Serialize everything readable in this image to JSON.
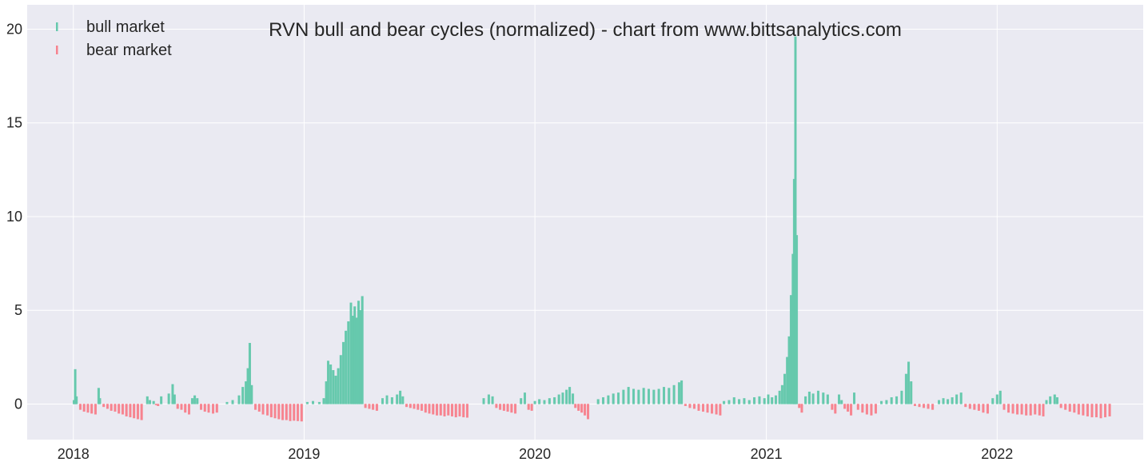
{
  "chart_data": {
    "type": "bar",
    "title": "RVN bull and bear cycles (normalized)  - chart from www.bittsanalytics.com",
    "xlabel": "",
    "ylabel": "",
    "xlim": [
      "2017-10-20",
      "2022-08-20"
    ],
    "ylim": [
      -1.9,
      21.3
    ],
    "x_ticks": [
      "2018",
      "2019",
      "2020",
      "2021",
      "2022"
    ],
    "y_ticks": [
      0,
      5,
      10,
      15,
      20
    ],
    "grid": true,
    "legend": {
      "position": "top-left"
    },
    "colors": {
      "bull market": "#66c9ad",
      "bear market": "#f7838f",
      "background": "#eaeaf2",
      "grid": "#ffffff"
    },
    "series": [
      {
        "name": "bull market",
        "points": [
          [
            "2018-01-02",
            0.2
          ],
          [
            "2018-01-04",
            1.85
          ],
          [
            "2018-01-06",
            0.4
          ],
          [
            "2018-02-10",
            0.85
          ],
          [
            "2018-02-12",
            0.3
          ],
          [
            "2018-04-28",
            0.4
          ],
          [
            "2018-05-02",
            0.2
          ],
          [
            "2018-05-08",
            0.15
          ],
          [
            "2018-05-20",
            0.4
          ],
          [
            "2018-06-01",
            0.55
          ],
          [
            "2018-06-07",
            1.05
          ],
          [
            "2018-06-10",
            0.5
          ],
          [
            "2018-07-08",
            0.3
          ],
          [
            "2018-07-12",
            0.45
          ],
          [
            "2018-07-16",
            0.3
          ],
          [
            "2018-09-01",
            0.1
          ],
          [
            "2018-09-10",
            0.2
          ],
          [
            "2018-09-20",
            0.45
          ],
          [
            "2018-09-26",
            0.9
          ],
          [
            "2018-10-01",
            1.2
          ],
          [
            "2018-10-04",
            1.9
          ],
          [
            "2018-10-07",
            3.25
          ],
          [
            "2018-10-10",
            1.0
          ],
          [
            "2019-01-06",
            0.1
          ],
          [
            "2019-01-15",
            0.15
          ],
          [
            "2019-01-25",
            0.1
          ],
          [
            "2019-02-01",
            0.3
          ],
          [
            "2019-02-05",
            1.2
          ],
          [
            "2019-02-08",
            2.3
          ],
          [
            "2019-02-12",
            2.1
          ],
          [
            "2019-02-16",
            1.8
          ],
          [
            "2019-02-20",
            1.5
          ],
          [
            "2019-02-24",
            1.9
          ],
          [
            "2019-02-28",
            2.6
          ],
          [
            "2019-03-04",
            3.3
          ],
          [
            "2019-03-08",
            3.9
          ],
          [
            "2019-03-12",
            4.4
          ],
          [
            "2019-03-16",
            5.4
          ],
          [
            "2019-03-19",
            4.7
          ],
          [
            "2019-03-22",
            5.2
          ],
          [
            "2019-03-25",
            4.6
          ],
          [
            "2019-03-28",
            5.5
          ],
          [
            "2019-03-31",
            5.0
          ],
          [
            "2019-04-03",
            5.75
          ],
          [
            "2019-05-05",
            0.3
          ],
          [
            "2019-05-12",
            0.45
          ],
          [
            "2019-05-20",
            0.35
          ],
          [
            "2019-05-28",
            0.5
          ],
          [
            "2019-06-02",
            0.7
          ],
          [
            "2019-06-06",
            0.4
          ],
          [
            "2019-10-12",
            0.3
          ],
          [
            "2019-10-20",
            0.5
          ],
          [
            "2019-10-26",
            0.4
          ],
          [
            "2019-12-10",
            0.3
          ],
          [
            "2019-12-16",
            0.6
          ],
          [
            "2020-01-01",
            0.15
          ],
          [
            "2020-01-08",
            0.25
          ],
          [
            "2020-01-16",
            0.2
          ],
          [
            "2020-01-24",
            0.3
          ],
          [
            "2020-02-01",
            0.35
          ],
          [
            "2020-02-08",
            0.5
          ],
          [
            "2020-02-14",
            0.6
          ],
          [
            "2020-02-20",
            0.75
          ],
          [
            "2020-02-25",
            0.9
          ],
          [
            "2020-03-01",
            0.55
          ],
          [
            "2020-04-10",
            0.25
          ],
          [
            "2020-04-18",
            0.35
          ],
          [
            "2020-04-26",
            0.45
          ],
          [
            "2020-05-04",
            0.55
          ],
          [
            "2020-05-12",
            0.6
          ],
          [
            "2020-05-20",
            0.75
          ],
          [
            "2020-05-28",
            0.9
          ],
          [
            "2020-06-05",
            0.8
          ],
          [
            "2020-06-13",
            0.75
          ],
          [
            "2020-06-21",
            0.85
          ],
          [
            "2020-06-29",
            0.8
          ],
          [
            "2020-07-07",
            0.75
          ],
          [
            "2020-07-15",
            0.8
          ],
          [
            "2020-07-23",
            0.9
          ],
          [
            "2020-07-31",
            0.85
          ],
          [
            "2020-08-08",
            1.0
          ],
          [
            "2020-08-16",
            1.15
          ],
          [
            "2020-08-20",
            1.25
          ],
          [
            "2020-10-26",
            0.15
          ],
          [
            "2020-11-03",
            0.2
          ],
          [
            "2020-11-11",
            0.35
          ],
          [
            "2020-11-19",
            0.25
          ],
          [
            "2020-11-27",
            0.3
          ],
          [
            "2020-12-05",
            0.2
          ],
          [
            "2020-12-13",
            0.35
          ],
          [
            "2020-12-21",
            0.4
          ],
          [
            "2020-12-29",
            0.3
          ],
          [
            "2021-01-04",
            0.5
          ],
          [
            "2021-01-10",
            0.35
          ],
          [
            "2021-01-16",
            0.45
          ],
          [
            "2021-01-22",
            0.7
          ],
          [
            "2021-01-26",
            1.0
          ],
          [
            "2021-01-30",
            1.6
          ],
          [
            "2021-02-03",
            2.5
          ],
          [
            "2021-02-06",
            3.6
          ],
          [
            "2021-02-09",
            5.8
          ],
          [
            "2021-02-12",
            8.0
          ],
          [
            "2021-02-14",
            12.0
          ],
          [
            "2021-02-16",
            19.6
          ],
          [
            "2021-02-18",
            9.0
          ],
          [
            "2021-03-04",
            0.4
          ],
          [
            "2021-03-10",
            0.65
          ],
          [
            "2021-03-16",
            0.55
          ],
          [
            "2021-03-24",
            0.7
          ],
          [
            "2021-04-01",
            0.6
          ],
          [
            "2021-04-08",
            0.5
          ],
          [
            "2021-04-26",
            0.5
          ],
          [
            "2021-04-30",
            0.2
          ],
          [
            "2021-05-20",
            0.6
          ],
          [
            "2021-07-02",
            0.15
          ],
          [
            "2021-07-10",
            0.2
          ],
          [
            "2021-07-18",
            0.35
          ],
          [
            "2021-07-26",
            0.4
          ],
          [
            "2021-08-03",
            0.7
          ],
          [
            "2021-08-10",
            1.6
          ],
          [
            "2021-08-14",
            2.25
          ],
          [
            "2021-08-18",
            1.2
          ],
          [
            "2021-10-01",
            0.2
          ],
          [
            "2021-10-08",
            0.3
          ],
          [
            "2021-10-15",
            0.25
          ],
          [
            "2021-10-22",
            0.35
          ],
          [
            "2021-10-29",
            0.5
          ],
          [
            "2021-11-05",
            0.6
          ],
          [
            "2021-12-25",
            0.3
          ],
          [
            "2022-01-01",
            0.5
          ],
          [
            "2022-01-06",
            0.7
          ],
          [
            "2022-03-20",
            0.2
          ],
          [
            "2022-03-26",
            0.4
          ],
          [
            "2022-04-02",
            0.5
          ],
          [
            "2022-04-06",
            0.35
          ]
        ]
      },
      {
        "name": "bear market",
        "points": [
          [
            "2018-01-12",
            -0.3
          ],
          [
            "2018-01-18",
            -0.4
          ],
          [
            "2018-01-24",
            -0.45
          ],
          [
            "2018-01-30",
            -0.5
          ],
          [
            "2018-02-05",
            -0.55
          ],
          [
            "2018-02-18",
            -0.15
          ],
          [
            "2018-02-24",
            -0.25
          ],
          [
            "2018-03-02",
            -0.35
          ],
          [
            "2018-03-08",
            -0.4
          ],
          [
            "2018-03-14",
            -0.5
          ],
          [
            "2018-03-20",
            -0.55
          ],
          [
            "2018-03-26",
            -0.65
          ],
          [
            "2018-04-01",
            -0.7
          ],
          [
            "2018-04-07",
            -0.75
          ],
          [
            "2018-04-13",
            -0.8
          ],
          [
            "2018-04-19",
            -0.85
          ],
          [
            "2018-05-12",
            -0.05
          ],
          [
            "2018-05-15",
            -0.1
          ],
          [
            "2018-06-15",
            -0.25
          ],
          [
            "2018-06-21",
            -0.3
          ],
          [
            "2018-06-27",
            -0.45
          ],
          [
            "2018-07-03",
            -0.55
          ],
          [
            "2018-07-22",
            -0.3
          ],
          [
            "2018-07-28",
            -0.4
          ],
          [
            "2018-08-03",
            -0.45
          ],
          [
            "2018-08-10",
            -0.5
          ],
          [
            "2018-08-16",
            -0.45
          ],
          [
            "2018-10-16",
            -0.3
          ],
          [
            "2018-10-22",
            -0.4
          ],
          [
            "2018-10-28",
            -0.55
          ],
          [
            "2018-11-04",
            -0.6
          ],
          [
            "2018-11-10",
            -0.7
          ],
          [
            "2018-11-16",
            -0.75
          ],
          [
            "2018-11-22",
            -0.8
          ],
          [
            "2018-11-28",
            -0.85
          ],
          [
            "2018-12-04",
            -0.85
          ],
          [
            "2018-12-10",
            -0.9
          ],
          [
            "2018-12-16",
            -0.88
          ],
          [
            "2018-12-22",
            -0.9
          ],
          [
            "2018-12-28",
            -0.92
          ],
          [
            "2019-04-08",
            -0.2
          ],
          [
            "2019-04-14",
            -0.25
          ],
          [
            "2019-04-20",
            -0.3
          ],
          [
            "2019-04-26",
            -0.35
          ],
          [
            "2019-06-12",
            -0.15
          ],
          [
            "2019-06-18",
            -0.2
          ],
          [
            "2019-06-24",
            -0.25
          ],
          [
            "2019-06-30",
            -0.3
          ],
          [
            "2019-07-06",
            -0.35
          ],
          [
            "2019-07-12",
            -0.45
          ],
          [
            "2019-07-18",
            -0.5
          ],
          [
            "2019-07-24",
            -0.55
          ],
          [
            "2019-07-30",
            -0.6
          ],
          [
            "2019-08-05",
            -0.6
          ],
          [
            "2019-08-11",
            -0.65
          ],
          [
            "2019-08-17",
            -0.6
          ],
          [
            "2019-08-23",
            -0.65
          ],
          [
            "2019-08-29",
            -0.7
          ],
          [
            "2019-09-04",
            -0.65
          ],
          [
            "2019-09-10",
            -0.7
          ],
          [
            "2019-09-16",
            -0.72
          ],
          [
            "2019-11-01",
            -0.2
          ],
          [
            "2019-11-07",
            -0.3
          ],
          [
            "2019-11-13",
            -0.35
          ],
          [
            "2019-11-19",
            -0.4
          ],
          [
            "2019-11-25",
            -0.45
          ],
          [
            "2019-12-01",
            -0.5
          ],
          [
            "2019-12-22",
            -0.3
          ],
          [
            "2019-12-27",
            -0.35
          ],
          [
            "2020-03-05",
            -0.2
          ],
          [
            "2020-03-10",
            -0.35
          ],
          [
            "2020-03-15",
            -0.45
          ],
          [
            "2020-03-20",
            -0.6
          ],
          [
            "2020-03-25",
            -0.8
          ],
          [
            "2020-08-26",
            -0.1
          ],
          [
            "2020-09-02",
            -0.2
          ],
          [
            "2020-09-09",
            -0.25
          ],
          [
            "2020-09-16",
            -0.35
          ],
          [
            "2020-09-23",
            -0.4
          ],
          [
            "2020-09-30",
            -0.45
          ],
          [
            "2020-10-07",
            -0.5
          ],
          [
            "2020-10-14",
            -0.55
          ],
          [
            "2020-10-20",
            -0.6
          ],
          [
            "2021-02-22",
            -0.2
          ],
          [
            "2021-02-26",
            -0.45
          ],
          [
            "2021-04-15",
            -0.3
          ],
          [
            "2021-04-20",
            -0.5
          ],
          [
            "2021-05-05",
            -0.25
          ],
          [
            "2021-05-10",
            -0.4
          ],
          [
            "2021-05-15",
            -0.6
          ],
          [
            "2021-05-26",
            -0.3
          ],
          [
            "2021-06-02",
            -0.45
          ],
          [
            "2021-06-09",
            -0.55
          ],
          [
            "2021-06-16",
            -0.6
          ],
          [
            "2021-06-23",
            -0.5
          ],
          [
            "2021-08-24",
            -0.1
          ],
          [
            "2021-08-31",
            -0.15
          ],
          [
            "2021-09-07",
            -0.2
          ],
          [
            "2021-09-14",
            -0.25
          ],
          [
            "2021-09-21",
            -0.3
          ],
          [
            "2021-11-12",
            -0.15
          ],
          [
            "2021-11-19",
            -0.25
          ],
          [
            "2021-11-26",
            -0.3
          ],
          [
            "2021-12-03",
            -0.35
          ],
          [
            "2021-12-10",
            -0.45
          ],
          [
            "2021-12-17",
            -0.5
          ],
          [
            "2022-01-12",
            -0.3
          ],
          [
            "2022-01-19",
            -0.45
          ],
          [
            "2022-01-26",
            -0.5
          ],
          [
            "2022-02-02",
            -0.55
          ],
          [
            "2022-02-09",
            -0.55
          ],
          [
            "2022-02-16",
            -0.6
          ],
          [
            "2022-02-23",
            -0.6
          ],
          [
            "2022-03-02",
            -0.55
          ],
          [
            "2022-03-09",
            -0.6
          ],
          [
            "2022-03-15",
            -0.65
          ],
          [
            "2022-04-12",
            -0.2
          ],
          [
            "2022-04-19",
            -0.3
          ],
          [
            "2022-04-26",
            -0.4
          ],
          [
            "2022-05-03",
            -0.45
          ],
          [
            "2022-05-10",
            -0.55
          ],
          [
            "2022-05-17",
            -0.6
          ],
          [
            "2022-05-24",
            -0.65
          ],
          [
            "2022-05-31",
            -0.7
          ],
          [
            "2022-06-07",
            -0.7
          ],
          [
            "2022-06-14",
            -0.75
          ],
          [
            "2022-06-21",
            -0.7
          ],
          [
            "2022-06-28",
            -0.65
          ]
        ]
      }
    ]
  }
}
